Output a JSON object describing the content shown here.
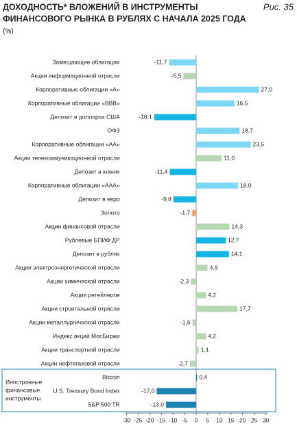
{
  "chart_data": {
    "type": "barh",
    "title": [
      "ДОХОДНОСТЬ* ВЛОЖЕНИЙ В ИНСТРУМЕНТЫ",
      "ФИНАНСОВОГО РЫНКА В РУБЛЯХ С НАЧАЛА 2025 ГОДА"
    ],
    "figure_label": "Рис. 35",
    "unit": "(%)",
    "group_label": [
      "Иностранные",
      "финансовые",
      "инструменты"
    ],
    "categories": [
      "Замещающие облигации",
      "Акции информационной отрасли",
      "Корпоративные облигации «А»",
      "Корпоративные облигации «BBB»",
      "Депозит в долларах США",
      "ОФЗ",
      "Корпоративные облигации «АА»",
      "Акции телекоммуникационной отрасли",
      "Депозит в юанях",
      "Корпоративные облигации «ААА»",
      "Депозит в евро",
      "Золото",
      "Акции финансовой отрасли",
      "Рублевые БПИФ ДР",
      "Депозит в рублях",
      "Акции электроэнергетической отрасли",
      "Акции химической отрасли",
      "Акции ретейлеров",
      "Акции строительной отрасли",
      "Акции металлургической отрасли",
      "Индекс акций МосБиржи",
      "Акции транспортной отрасли",
      "Акции нефтегазовой отрасли",
      "Bitcoin",
      "U.S. Treasury Bond Index",
      "S&P 500 TR"
    ],
    "values": [
      -11.7,
      -5.5,
      27.0,
      16.5,
      -18.1,
      18.7,
      23.5,
      11.0,
      -11.4,
      18.0,
      -9.8,
      -1.7,
      14.3,
      12.7,
      14.1,
      4.9,
      -2.3,
      4.2,
      17.7,
      -1.6,
      4.2,
      1.1,
      -2.7,
      0.4,
      -17.0,
      -13.0
    ],
    "value_labels": [
      "-11,7",
      "-5,5",
      "27,0",
      "16,5",
      "-18,1",
      "18,7",
      "23,5",
      "11,0",
      "-11,4",
      "18,0",
      "-9,8",
      "-1,7",
      "14,3",
      "12,7",
      "14,1",
      "4,9",
      "-2,3",
      "4,2",
      "17,7",
      "-1,6",
      "4,2",
      "1,1",
      "-2,7",
      "0,4",
      "-17,0",
      "-13,0"
    ],
    "colors": [
      "#7fd6f4",
      "#b7d7b3",
      "#7fd6f4",
      "#7fd6f4",
      "#14b4e6",
      "#7fd6f4",
      "#7fd6f4",
      "#b7d7b3",
      "#14b4e6",
      "#7fd6f4",
      "#14b4e6",
      "#f4a56a",
      "#b7d7b3",
      "#14b4e6",
      "#14b4e6",
      "#b7d7b3",
      "#b7d7b3",
      "#b7d7b3",
      "#b7d7b3",
      "#b7d7b3",
      "#b7d7b3",
      "#b7d7b3",
      "#b7d7b3",
      "#1b82b4",
      "#1b82b4",
      "#1b82b4"
    ],
    "xlim": [
      -32,
      32
    ],
    "xticks": [
      -30,
      -25,
      -20,
      -15,
      -10,
      -5,
      0,
      5,
      10,
      15,
      20,
      25,
      30
    ]
  }
}
